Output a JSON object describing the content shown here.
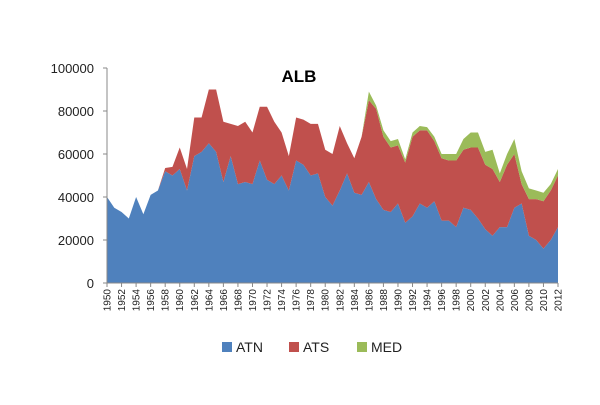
{
  "chart_data": {
    "type": "area",
    "stacked": true,
    "title": "ALB",
    "xlabel": "",
    "ylabel": "",
    "x": [
      1950,
      1951,
      1952,
      1953,
      1954,
      1955,
      1956,
      1957,
      1958,
      1959,
      1960,
      1961,
      1962,
      1963,
      1964,
      1965,
      1966,
      1967,
      1968,
      1969,
      1970,
      1971,
      1972,
      1973,
      1974,
      1975,
      1976,
      1977,
      1978,
      1979,
      1980,
      1981,
      1982,
      1983,
      1984,
      1985,
      1986,
      1987,
      1988,
      1989,
      1990,
      1991,
      1992,
      1993,
      1994,
      1995,
      1996,
      1997,
      1998,
      1999,
      2000,
      2001,
      2002,
      2003,
      2004,
      2005,
      2006,
      2007,
      2008,
      2009,
      2010,
      2011,
      2012
    ],
    "x_tick_labels": [
      "1950",
      "1952",
      "1954",
      "1956",
      "1958",
      "1960",
      "1962",
      "1964",
      "1966",
      "1968",
      "1970",
      "1972",
      "1974",
      "1976",
      "1978",
      "1980",
      "1982",
      "1984",
      "1986",
      "1988",
      "1990",
      "1992",
      "1994",
      "1996",
      "1998",
      "2000",
      "2002",
      "2004",
      "2006",
      "2008",
      "2010",
      "2012"
    ],
    "ylim": [
      0,
      100000
    ],
    "y_tick_labels": [
      "0",
      "20000",
      "40000",
      "60000",
      "80000",
      "100000"
    ],
    "grid": false,
    "legend_position": "bottom",
    "series": [
      {
        "name": "ATN",
        "color": "#4f81bd",
        "values": [
          40000,
          35000,
          33000,
          30000,
          40000,
          32000,
          41000,
          43000,
          52000,
          50000,
          53000,
          43000,
          59000,
          61000,
          65000,
          61000,
          47000,
          59000,
          46000,
          47000,
          46000,
          57000,
          48000,
          46000,
          50000,
          43000,
          57000,
          55000,
          50000,
          51000,
          40000,
          36000,
          43000,
          51000,
          42000,
          41000,
          47000,
          39000,
          34000,
          33000,
          37000,
          28000,
          31000,
          37000,
          35000,
          38000,
          29000,
          29000,
          26000,
          35000,
          34000,
          30000,
          25000,
          22000,
          26000,
          26000,
          35000,
          37000,
          22000,
          20000,
          16000,
          20000,
          26000
        ]
      },
      {
        "name": "ATS",
        "color": "#c0504d",
        "values": [
          0,
          0,
          0,
          0,
          0,
          0,
          0,
          0,
          1500,
          4000,
          10000,
          10000,
          18000,
          16000,
          25000,
          29000,
          28000,
          15000,
          27000,
          28000,
          24000,
          25000,
          34000,
          29000,
          20000,
          16000,
          20000,
          21000,
          24000,
          23000,
          22000,
          24000,
          30000,
          14000,
          16000,
          27000,
          38000,
          42000,
          34000,
          30000,
          27000,
          28000,
          37000,
          34000,
          36000,
          28000,
          29000,
          28000,
          31000,
          27000,
          29000,
          33000,
          30000,
          31000,
          21000,
          29000,
          25000,
          9000,
          17000,
          19000,
          22000,
          23000,
          24000
        ]
      },
      {
        "name": "MED",
        "color": "#9bbb59",
        "values": [
          0,
          0,
          0,
          0,
          0,
          0,
          0,
          0,
          0,
          0,
          0,
          0,
          0,
          0,
          0,
          0,
          0,
          0,
          0,
          0,
          0,
          0,
          0,
          0,
          0,
          0,
          0,
          0,
          0,
          0,
          0,
          0,
          0,
          0,
          0,
          0,
          4000,
          1500,
          3000,
          3000,
          3000,
          1500,
          2000,
          2000,
          1500,
          2000,
          2000,
          3000,
          3000,
          5000,
          7000,
          7000,
          6000,
          9000,
          4000,
          5000,
          7000,
          6000,
          5000,
          4000,
          4000,
          3000,
          3000
        ]
      }
    ]
  }
}
